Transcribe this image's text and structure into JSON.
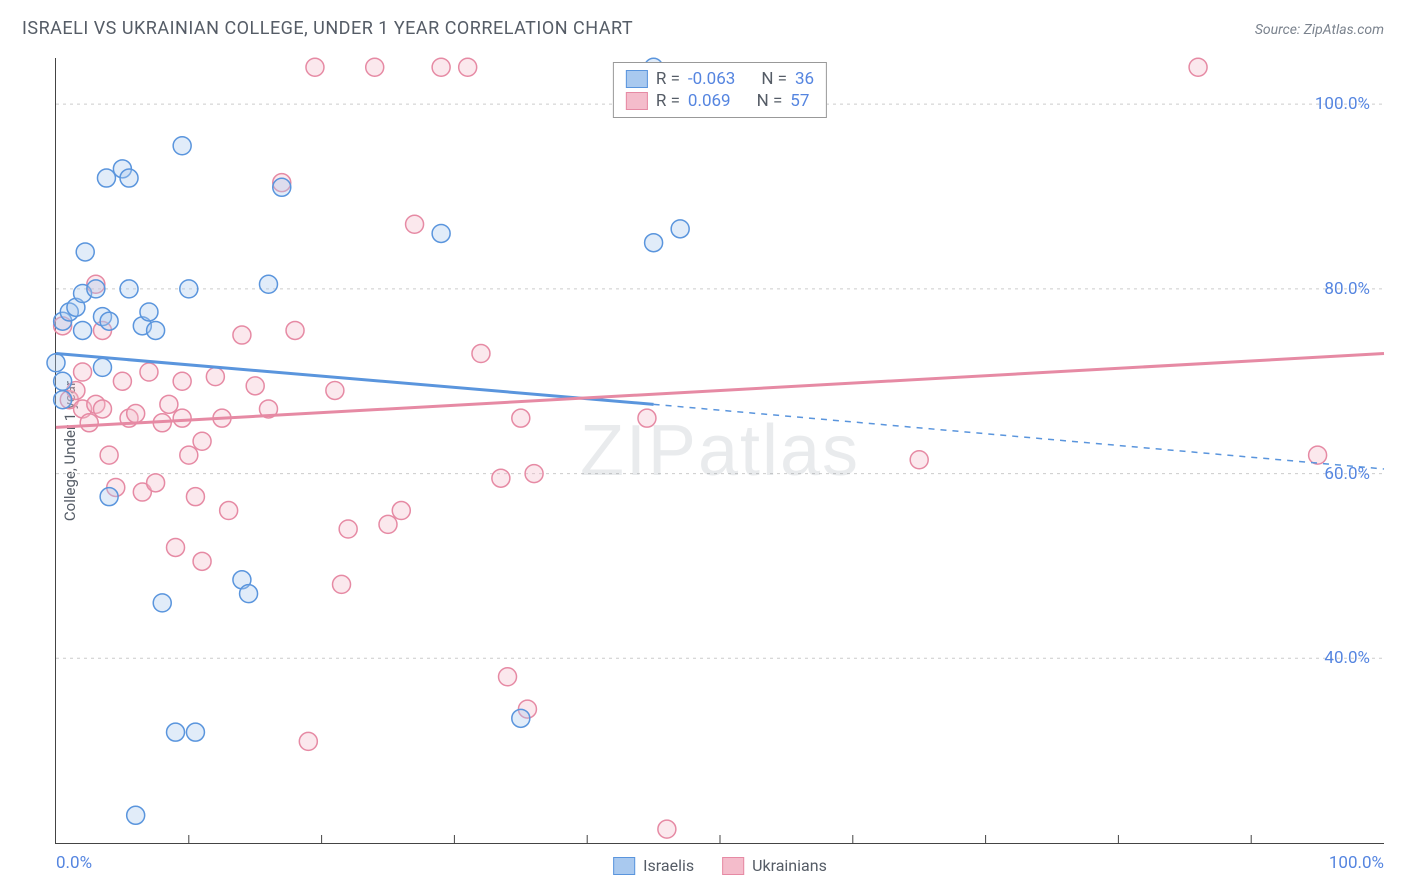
{
  "title": "ISRAELI VS UKRAINIAN COLLEGE, UNDER 1 YEAR CORRELATION CHART",
  "source": "Source: ZipAtlas.com",
  "ylabel": "College, Under 1 year",
  "watermark": "ZIPatlas",
  "chart": {
    "type": "scatter",
    "xlim": [
      0,
      100
    ],
    "ylim": [
      20,
      105
    ],
    "x_ticks": {
      "labels": [
        "0.0%",
        "100.0%"
      ],
      "minor_step": 10
    },
    "y_ticks": {
      "positions": [
        40,
        60,
        80,
        100
      ],
      "labels": [
        "40.0%",
        "60.0%",
        "80.0%",
        "100.0%"
      ]
    },
    "grid_color": "#cccccc",
    "grid_dash": "3,4",
    "background_color": "#ffffff",
    "axis_color": "#444444",
    "tick_label_color": "#5585e0",
    "marker_radius": 9,
    "marker_stroke_width": 1.5,
    "marker_fill_opacity": 0.35,
    "series": [
      {
        "name": "Israelis",
        "color_stroke": "#5a95dd",
        "color_fill": "#a9c9ef",
        "R": "-0.063",
        "N": "36",
        "regression": {
          "x1": 0,
          "y1": 73,
          "x2_solid": 45,
          "y2_solid": 67.5,
          "x2": 100,
          "y2": 60.5,
          "stroke_width": 3
        },
        "points": [
          [
            0.0,
            72
          ],
          [
            0.5,
            70
          ],
          [
            0.5,
            68
          ],
          [
            0.5,
            76.5
          ],
          [
            1,
            77.5
          ],
          [
            1.5,
            78
          ],
          [
            2,
            79.5
          ],
          [
            2,
            75.5
          ],
          [
            2.2,
            84
          ],
          [
            3,
            80
          ],
          [
            3.5,
            77
          ],
          [
            3.8,
            92
          ],
          [
            3.5,
            71.5
          ],
          [
            4,
            57.5
          ],
          [
            4,
            76.5
          ],
          [
            5,
            93
          ],
          [
            5.5,
            92
          ],
          [
            5.5,
            80
          ],
          [
            6,
            23
          ],
          [
            6.5,
            76
          ],
          [
            7,
            77.5
          ],
          [
            7.5,
            75.5
          ],
          [
            8,
            46
          ],
          [
            9.5,
            95.5
          ],
          [
            9,
            32
          ],
          [
            10,
            80
          ],
          [
            10.5,
            32
          ],
          [
            14,
            48.5
          ],
          [
            14.5,
            47
          ],
          [
            16,
            80.5
          ],
          [
            17,
            91
          ],
          [
            29,
            86
          ],
          [
            35,
            33.5
          ],
          [
            45,
            85
          ],
          [
            47,
            86.5
          ],
          [
            45,
            104
          ]
        ]
      },
      {
        "name": "Ukrainians",
        "color_stroke": "#e68aa4",
        "color_fill": "#f4bccb",
        "R": "0.069",
        "N": "57",
        "regression": {
          "x1": 0,
          "y1": 65,
          "x2_solid": 100,
          "y2_solid": 73,
          "x2": 100,
          "y2": 73,
          "stroke_width": 3
        },
        "points": [
          [
            0.5,
            76
          ],
          [
            1,
            68
          ],
          [
            1.5,
            69
          ],
          [
            2,
            67
          ],
          [
            2,
            71
          ],
          [
            2.5,
            65.5
          ],
          [
            3,
            67.5
          ],
          [
            3,
            80.5
          ],
          [
            3.5,
            67
          ],
          [
            3.5,
            75.5
          ],
          [
            4,
            62
          ],
          [
            4.5,
            58.5
          ],
          [
            5,
            70
          ],
          [
            5.5,
            66
          ],
          [
            6,
            66.5
          ],
          [
            6.5,
            58
          ],
          [
            7,
            71
          ],
          [
            7.5,
            59
          ],
          [
            8,
            65.5
          ],
          [
            8.5,
            67.5
          ],
          [
            9,
            52
          ],
          [
            9.5,
            70
          ],
          [
            9.5,
            66
          ],
          [
            10,
            62
          ],
          [
            10.5,
            57.5
          ],
          [
            11,
            50.5
          ],
          [
            11,
            63.5
          ],
          [
            12,
            70.5
          ],
          [
            12.5,
            66
          ],
          [
            13,
            56
          ],
          [
            14,
            75
          ],
          [
            15,
            69.5
          ],
          [
            16,
            67
          ],
          [
            17,
            91.5
          ],
          [
            18,
            75.5
          ],
          [
            19,
            31
          ],
          [
            19.5,
            104
          ],
          [
            21,
            69
          ],
          [
            21.5,
            48
          ],
          [
            22,
            54
          ],
          [
            24,
            104
          ],
          [
            25,
            54.5
          ],
          [
            26,
            56
          ],
          [
            27,
            87
          ],
          [
            29,
            104
          ],
          [
            31,
            104
          ],
          [
            32,
            73
          ],
          [
            33.5,
            59.5
          ],
          [
            34,
            38
          ],
          [
            35,
            66
          ],
          [
            35.5,
            34.5
          ],
          [
            36,
            60
          ],
          [
            44.5,
            66
          ],
          [
            46,
            21.5
          ],
          [
            65,
            61.5
          ],
          [
            86,
            104
          ],
          [
            95,
            62
          ]
        ]
      }
    ]
  },
  "bottom_legend": [
    {
      "label": "Israelis",
      "stroke": "#5a95dd",
      "fill": "#a9c9ef"
    },
    {
      "label": "Ukrainians",
      "stroke": "#e68aa4",
      "fill": "#f4bccb"
    }
  ]
}
